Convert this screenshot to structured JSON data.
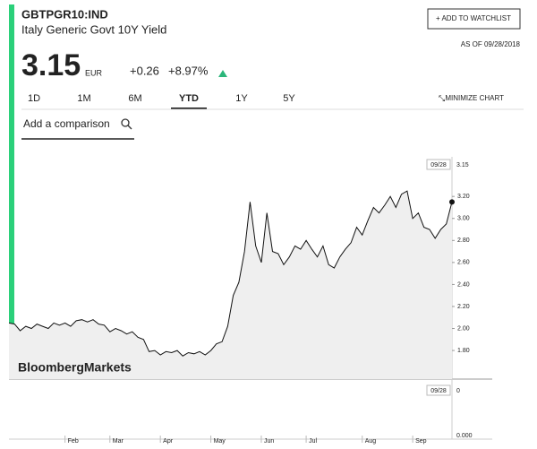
{
  "header": {
    "ticker": "GBTPGR10:IND",
    "name": "Italy Generic Govt 10Y Yield",
    "price": "3.15",
    "currency": "EUR",
    "change": "+0.26",
    "change_percent": "+8.97%",
    "watchlist": "+ ADD TO WATCHLIST",
    "as_of": "AS OF 09/28/2018"
  },
  "tabs": [
    "1D",
    "1M",
    "6M",
    "YTD",
    "1Y",
    "5Y"
  ],
  "minimize": "MINIMIZE CHART",
  "comparison": "Add a comparison",
  "watermark": "BloombergMarkets",
  "chart_data": {
    "type": "line",
    "categories": [
      null,
      null,
      null,
      null,
      null,
      null,
      null,
      null,
      null,
      null,
      "Feb",
      null,
      null,
      null,
      null,
      null,
      null,
      null,
      "Mar",
      null,
      null,
      null,
      null,
      null,
      null,
      null,
      null,
      "Apr",
      null,
      null,
      null,
      null,
      null,
      null,
      null,
      null,
      "May",
      null,
      null,
      null,
      null,
      null,
      null,
      null,
      null,
      "Jun",
      null,
      null,
      null,
      null,
      null,
      null,
      null,
      "Jul",
      null,
      null,
      null,
      null,
      null,
      null,
      null,
      null,
      null,
      "Aug",
      null,
      null,
      null,
      null,
      null,
      null,
      null,
      null,
      "Sep",
      null,
      null,
      null,
      null,
      null,
      null,
      null
    ],
    "series": [
      {
        "name": "GBTPGR10:IND",
        "color": "#111111",
        "values": [
          2.05,
          2.04,
          1.98,
          2.02,
          2.0,
          2.04,
          2.02,
          2.0,
          2.05,
          2.03,
          2.05,
          2.02,
          2.07,
          2.08,
          2.06,
          2.08,
          2.04,
          2.03,
          1.97,
          2.0,
          1.98,
          1.95,
          1.97,
          1.92,
          1.9,
          1.79,
          1.8,
          1.76,
          1.79,
          1.78,
          1.8,
          1.75,
          1.78,
          1.77,
          1.79,
          1.76,
          1.8,
          1.86,
          1.88,
          2.02,
          2.3,
          2.42,
          2.7,
          3.15,
          2.75,
          2.6,
          3.05,
          2.7,
          2.68,
          2.58,
          2.65,
          2.75,
          2.72,
          2.8,
          2.72,
          2.65,
          2.75,
          2.58,
          2.55,
          2.65,
          2.72,
          2.78,
          2.92,
          2.85,
          2.98,
          3.1,
          3.05,
          3.12,
          3.2,
          3.1,
          3.22,
          3.25,
          3.0,
          3.05,
          2.92,
          2.9,
          2.82,
          2.9,
          2.95,
          3.15
        ]
      }
    ],
    "last_date": "09/28",
    "ylim": [
      1.54,
      3.56
    ],
    "yticks": [
      {
        "value": 1.8,
        "label": "1.80"
      },
      {
        "value": 2.0,
        "label": "2.00"
      },
      {
        "value": 2.2,
        "label": "2.20"
      },
      {
        "value": 2.4,
        "label": "2.40"
      },
      {
        "value": 2.6,
        "label": "2.60"
      },
      {
        "value": 2.8,
        "label": "2.80"
      },
      {
        "value": 3.0,
        "label": "3.00"
      },
      {
        "value": 3.2,
        "label": "3.20"
      }
    ],
    "grid": false,
    "area_color": "#efefef",
    "lower_panel": {
      "date": "09/28",
      "top_label": "0",
      "bottom_label": "0.000"
    }
  }
}
